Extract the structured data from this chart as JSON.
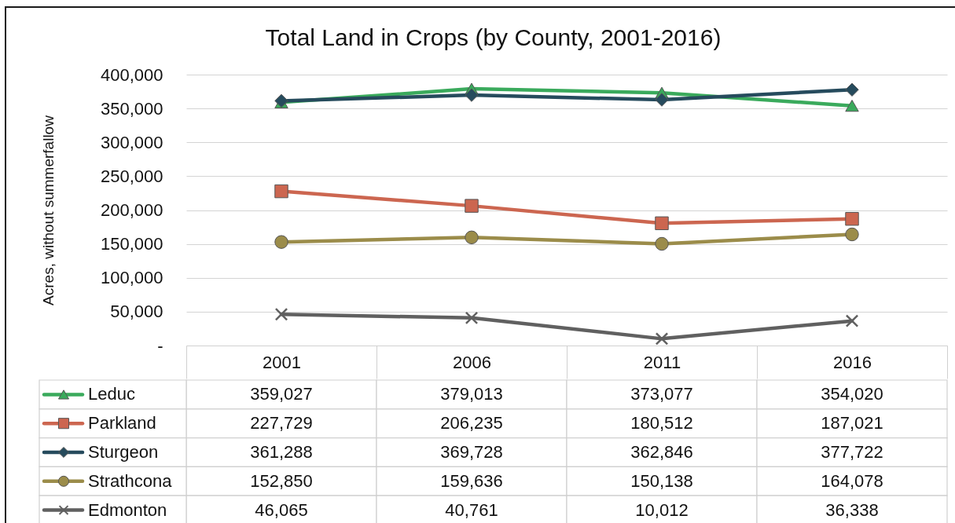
{
  "chart_data": {
    "type": "line",
    "title": "Total Land in Crops (by County, 2001-2016)",
    "ylabel": "Acres, without summerfallow",
    "categories": [
      "2001",
      "2006",
      "2011",
      "2016"
    ],
    "series": [
      {
        "name": "Leduc",
        "color": "#3aaa5c",
        "marker": "triangle",
        "values": [
          359027,
          379013,
          373077,
          354020
        ],
        "value_labels": [
          "359,027",
          "379,013",
          "373,077",
          "354,020"
        ]
      },
      {
        "name": "Parkland",
        "color": "#cc6650",
        "marker": "square",
        "values": [
          227729,
          206235,
          180512,
          187021
        ],
        "value_labels": [
          "227,729",
          "206,235",
          "180,512",
          "187,021"
        ]
      },
      {
        "name": "Sturgeon",
        "color": "#264b5d",
        "marker": "diamond",
        "values": [
          361288,
          369728,
          362846,
          377722
        ],
        "value_labels": [
          "361,288",
          "369,728",
          "362,846",
          "377,722"
        ]
      },
      {
        "name": "Strathcona",
        "color": "#9b8c4a",
        "marker": "circle",
        "values": [
          152850,
          159636,
          150138,
          164078
        ],
        "value_labels": [
          "152,850",
          "159,636",
          "150,138",
          "164,078"
        ]
      },
      {
        "name": "Edmonton",
        "color": "#606060",
        "marker": "cross",
        "values": [
          46065,
          40761,
          10012,
          36338
        ],
        "value_labels": [
          "46,065",
          "40,761",
          "10,012",
          "36,338"
        ]
      }
    ],
    "ylim": [
      0,
      400000
    ],
    "yticks": [
      {
        "value": 0,
        "label": "-"
      },
      {
        "value": 50000,
        "label": "50,000"
      },
      {
        "value": 100000,
        "label": "100,000"
      },
      {
        "value": 150000,
        "label": "150,000"
      },
      {
        "value": 200000,
        "label": "200,000"
      },
      {
        "value": 250000,
        "label": "250,000"
      },
      {
        "value": 300000,
        "label": "300,000"
      },
      {
        "value": 350000,
        "label": "350,000"
      },
      {
        "value": 400000,
        "label": "400,000"
      }
    ],
    "grid": "y",
    "legend": "bottom",
    "line_style": "solid"
  }
}
